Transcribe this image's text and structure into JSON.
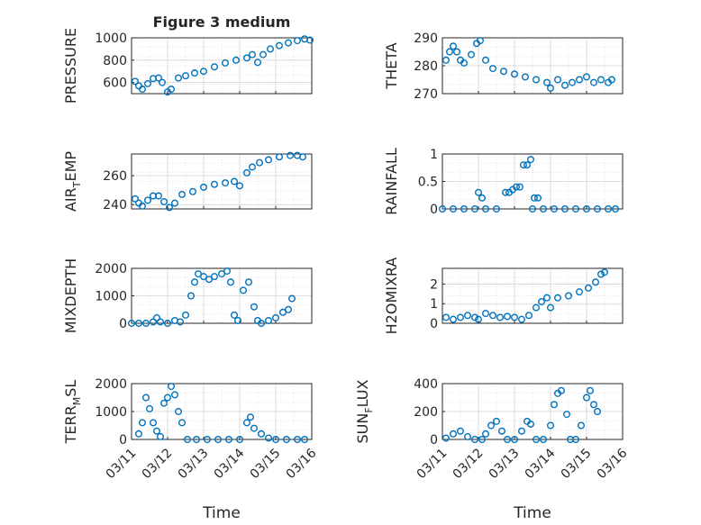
{
  "figure": {
    "title": "Figure 3 medium",
    "marker_color": "#0072BD"
  },
  "chart_data": [
    {
      "type": "scatter",
      "id": "pressure",
      "title": "Figure 3 medium",
      "ylabel": "PRESSURE",
      "ylim": [
        500,
        1000
      ],
      "yticks": [
        600,
        800,
        1000
      ],
      "xlim": [
        "03/11",
        "03/16"
      ],
      "xtick_labels": [],
      "grid": true,
      "series": [
        {
          "values": [
            [
              0.1,
              610
            ],
            [
              0.2,
              570
            ],
            [
              0.3,
              540
            ],
            [
              0.45,
              590
            ],
            [
              0.6,
              635
            ],
            [
              0.75,
              640
            ],
            [
              0.85,
              600
            ],
            [
              1.0,
              515
            ],
            [
              1.1,
              540
            ],
            [
              1.3,
              640
            ],
            [
              1.5,
              660
            ],
            [
              1.75,
              685
            ],
            [
              2.0,
              700
            ],
            [
              2.3,
              740
            ],
            [
              2.6,
              775
            ],
            [
              2.9,
              800
            ],
            [
              3.2,
              820
            ],
            [
              3.35,
              850
            ],
            [
              3.5,
              780
            ],
            [
              3.65,
              850
            ],
            [
              3.85,
              900
            ],
            [
              4.1,
              930
            ],
            [
              4.35,
              955
            ],
            [
              4.6,
              975
            ],
            [
              4.8,
              990
            ],
            [
              4.95,
              980
            ]
          ]
        }
      ]
    },
    {
      "type": "scatter",
      "id": "theta",
      "ylabel": "THETA",
      "ylim": [
        270,
        290
      ],
      "yticks": [
        270,
        280,
        290
      ],
      "xlim": [
        "03/11",
        "03/16"
      ],
      "xtick_labels": [],
      "grid": true,
      "series": [
        {
          "values": [
            [
              0.1,
              282
            ],
            [
              0.2,
              285
            ],
            [
              0.3,
              287
            ],
            [
              0.4,
              285
            ],
            [
              0.5,
              282
            ],
            [
              0.6,
              281
            ],
            [
              0.8,
              284
            ],
            [
              0.95,
              288
            ],
            [
              1.05,
              289
            ],
            [
              1.2,
              282
            ],
            [
              1.4,
              279
            ],
            [
              1.7,
              278
            ],
            [
              2.0,
              277
            ],
            [
              2.3,
              276
            ],
            [
              2.6,
              275
            ],
            [
              2.9,
              274
            ],
            [
              3.0,
              272
            ],
            [
              3.2,
              275
            ],
            [
              3.4,
              273
            ],
            [
              3.6,
              274
            ],
            [
              3.8,
              275
            ],
            [
              4.0,
              276
            ],
            [
              4.2,
              274
            ],
            [
              4.4,
              275
            ],
            [
              4.6,
              274
            ],
            [
              4.7,
              275
            ]
          ]
        }
      ]
    },
    {
      "type": "scatter",
      "id": "air_temp",
      "ylabel": "AIR_TEMP",
      "ylim": [
        237,
        275
      ],
      "yticks": [
        240,
        260
      ],
      "xlim": [
        "03/11",
        "03/16"
      ],
      "xtick_labels": [],
      "grid": true,
      "series": [
        {
          "values": [
            [
              0.1,
              244
            ],
            [
              0.2,
              241
            ],
            [
              0.3,
              239
            ],
            [
              0.45,
              243
            ],
            [
              0.6,
              246
            ],
            [
              0.75,
              246
            ],
            [
              0.9,
              242
            ],
            [
              1.05,
              238
            ],
            [
              1.2,
              241
            ],
            [
              1.4,
              247
            ],
            [
              1.7,
              249
            ],
            [
              2.0,
              252
            ],
            [
              2.3,
              254
            ],
            [
              2.6,
              255
            ],
            [
              2.85,
              256
            ],
            [
              3.0,
              253
            ],
            [
              3.2,
              262
            ],
            [
              3.35,
              266
            ],
            [
              3.55,
              269
            ],
            [
              3.8,
              271
            ],
            [
              4.1,
              273
            ],
            [
              4.4,
              274
            ],
            [
              4.6,
              274
            ],
            [
              4.75,
              273
            ]
          ]
        }
      ]
    },
    {
      "type": "scatter",
      "id": "rainfall",
      "ylabel": "RAINFALL",
      "ylim": [
        0,
        1
      ],
      "yticks": [
        0,
        0.5,
        1
      ],
      "xlim": [
        "03/11",
        "03/16"
      ],
      "xtick_labels": [],
      "grid": true,
      "series": [
        {
          "values": [
            [
              0.0,
              0
            ],
            [
              0.3,
              0
            ],
            [
              0.6,
              0
            ],
            [
              0.9,
              0
            ],
            [
              1.0,
              0.3
            ],
            [
              1.1,
              0.2
            ],
            [
              1.2,
              0
            ],
            [
              1.5,
              0
            ],
            [
              1.75,
              0.3
            ],
            [
              1.85,
              0.3
            ],
            [
              1.95,
              0.35
            ],
            [
              2.05,
              0.4
            ],
            [
              2.15,
              0.4
            ],
            [
              2.25,
              0.8
            ],
            [
              2.35,
              0.8
            ],
            [
              2.45,
              0.9
            ],
            [
              2.55,
              0.2
            ],
            [
              2.65,
              0.2
            ],
            [
              2.5,
              0
            ],
            [
              2.8,
              0
            ],
            [
              3.1,
              0
            ],
            [
              3.4,
              0
            ],
            [
              3.7,
              0
            ],
            [
              4.0,
              0
            ],
            [
              4.3,
              0
            ],
            [
              4.6,
              0
            ],
            [
              4.8,
              0
            ]
          ]
        }
      ]
    },
    {
      "type": "scatter",
      "id": "mixdepth",
      "ylabel": "MIXDEPTH",
      "ylim": [
        0,
        2000
      ],
      "yticks": [
        0,
        1000,
        2000
      ],
      "xlim": [
        "03/11",
        "03/16"
      ],
      "xtick_labels": [],
      "grid": true,
      "series": [
        {
          "values": [
            [
              0.0,
              0
            ],
            [
              0.2,
              0
            ],
            [
              0.4,
              0
            ],
            [
              0.6,
              50
            ],
            [
              0.7,
              200
            ],
            [
              0.8,
              50
            ],
            [
              1.0,
              0
            ],
            [
              1.2,
              100
            ],
            [
              1.35,
              50
            ],
            [
              1.5,
              300
            ],
            [
              1.65,
              1000
            ],
            [
              1.75,
              1500
            ],
            [
              1.85,
              1800
            ],
            [
              2.0,
              1700
            ],
            [
              2.15,
              1600
            ],
            [
              2.3,
              1700
            ],
            [
              2.5,
              1800
            ],
            [
              2.65,
              1900
            ],
            [
              2.75,
              1500
            ],
            [
              2.85,
              300
            ],
            [
              2.95,
              100
            ],
            [
              3.1,
              1200
            ],
            [
              3.25,
              1500
            ],
            [
              3.4,
              600
            ],
            [
              3.5,
              100
            ],
            [
              3.6,
              0
            ],
            [
              3.8,
              100
            ],
            [
              4.0,
              200
            ],
            [
              4.2,
              400
            ],
            [
              4.35,
              500
            ],
            [
              4.45,
              900
            ]
          ]
        }
      ]
    },
    {
      "type": "scatter",
      "id": "h2omixra",
      "ylabel": "H2OMIXRA",
      "ylim": [
        0,
        2.8
      ],
      "yticks": [
        0,
        1,
        2
      ],
      "xlim": [
        "03/11",
        "03/16"
      ],
      "xtick_labels": [],
      "grid": true,
      "series": [
        {
          "values": [
            [
              0.1,
              0.3
            ],
            [
              0.3,
              0.2
            ],
            [
              0.5,
              0.3
            ],
            [
              0.7,
              0.4
            ],
            [
              0.9,
              0.3
            ],
            [
              1.0,
              0.2
            ],
            [
              1.2,
              0.5
            ],
            [
              1.4,
              0.4
            ],
            [
              1.6,
              0.3
            ],
            [
              1.8,
              0.35
            ],
            [
              2.0,
              0.3
            ],
            [
              2.2,
              0.2
            ],
            [
              2.4,
              0.4
            ],
            [
              2.6,
              0.8
            ],
            [
              2.75,
              1.1
            ],
            [
              2.9,
              1.3
            ],
            [
              3.0,
              0.8
            ],
            [
              3.2,
              1.3
            ],
            [
              3.5,
              1.4
            ],
            [
              3.8,
              1.6
            ],
            [
              4.05,
              1.8
            ],
            [
              4.25,
              2.1
            ],
            [
              4.4,
              2.5
            ],
            [
              4.5,
              2.6
            ]
          ]
        }
      ]
    },
    {
      "type": "scatter",
      "id": "terr_msl",
      "ylabel": "TERR_MSL",
      "ylim": [
        0,
        2000
      ],
      "yticks": [
        0,
        1000,
        2000
      ],
      "xlim": [
        "03/11",
        "03/16"
      ],
      "xtick_labels": [
        "03/11",
        "03/12",
        "03/13",
        "03/14",
        "03/15",
        "03/16"
      ],
      "xlabel": "Time",
      "grid": true,
      "series": [
        {
          "values": [
            [
              0.2,
              200
            ],
            [
              0.3,
              600
            ],
            [
              0.4,
              1500
            ],
            [
              0.5,
              1100
            ],
            [
              0.6,
              600
            ],
            [
              0.7,
              300
            ],
            [
              0.8,
              100
            ],
            [
              0.9,
              1300
            ],
            [
              1.0,
              1500
            ],
            [
              1.1,
              1900
            ],
            [
              1.2,
              1600
            ],
            [
              1.3,
              1000
            ],
            [
              1.4,
              600
            ],
            [
              1.55,
              0
            ],
            [
              1.8,
              0
            ],
            [
              2.1,
              0
            ],
            [
              2.4,
              0
            ],
            [
              2.7,
              0
            ],
            [
              3.0,
              0
            ],
            [
              3.2,
              600
            ],
            [
              3.3,
              800
            ],
            [
              3.4,
              400
            ],
            [
              3.6,
              200
            ],
            [
              3.8,
              50
            ],
            [
              4.0,
              0
            ],
            [
              4.3,
              0
            ],
            [
              4.6,
              0
            ],
            [
              4.8,
              0
            ]
          ]
        }
      ]
    },
    {
      "type": "scatter",
      "id": "sun_flux",
      "ylabel": "SUN_FLUX",
      "ylim": [
        0,
        400
      ],
      "yticks": [
        0,
        200,
        400
      ],
      "xlim": [
        "03/11",
        "03/16"
      ],
      "xtick_labels": [
        "03/11",
        "03/12",
        "03/13",
        "03/14",
        "03/15",
        "03/16"
      ],
      "xlabel": "Time",
      "grid": true,
      "series": [
        {
          "values": [
            [
              0.1,
              10
            ],
            [
              0.3,
              40
            ],
            [
              0.5,
              60
            ],
            [
              0.7,
              20
            ],
            [
              0.9,
              0
            ],
            [
              1.1,
              0
            ],
            [
              1.2,
              40
            ],
            [
              1.35,
              100
            ],
            [
              1.5,
              130
            ],
            [
              1.65,
              60
            ],
            [
              1.8,
              0
            ],
            [
              2.0,
              0
            ],
            [
              2.2,
              60
            ],
            [
              2.35,
              130
            ],
            [
              2.45,
              110
            ],
            [
              2.6,
              0
            ],
            [
              2.8,
              0
            ],
            [
              3.0,
              100
            ],
            [
              3.1,
              250
            ],
            [
              3.2,
              330
            ],
            [
              3.3,
              350
            ],
            [
              3.45,
              180
            ],
            [
              3.55,
              0
            ],
            [
              3.7,
              0
            ],
            [
              3.85,
              100
            ],
            [
              4.0,
              300
            ],
            [
              4.1,
              350
            ],
            [
              4.2,
              250
            ],
            [
              4.3,
              200
            ]
          ]
        }
      ]
    }
  ]
}
